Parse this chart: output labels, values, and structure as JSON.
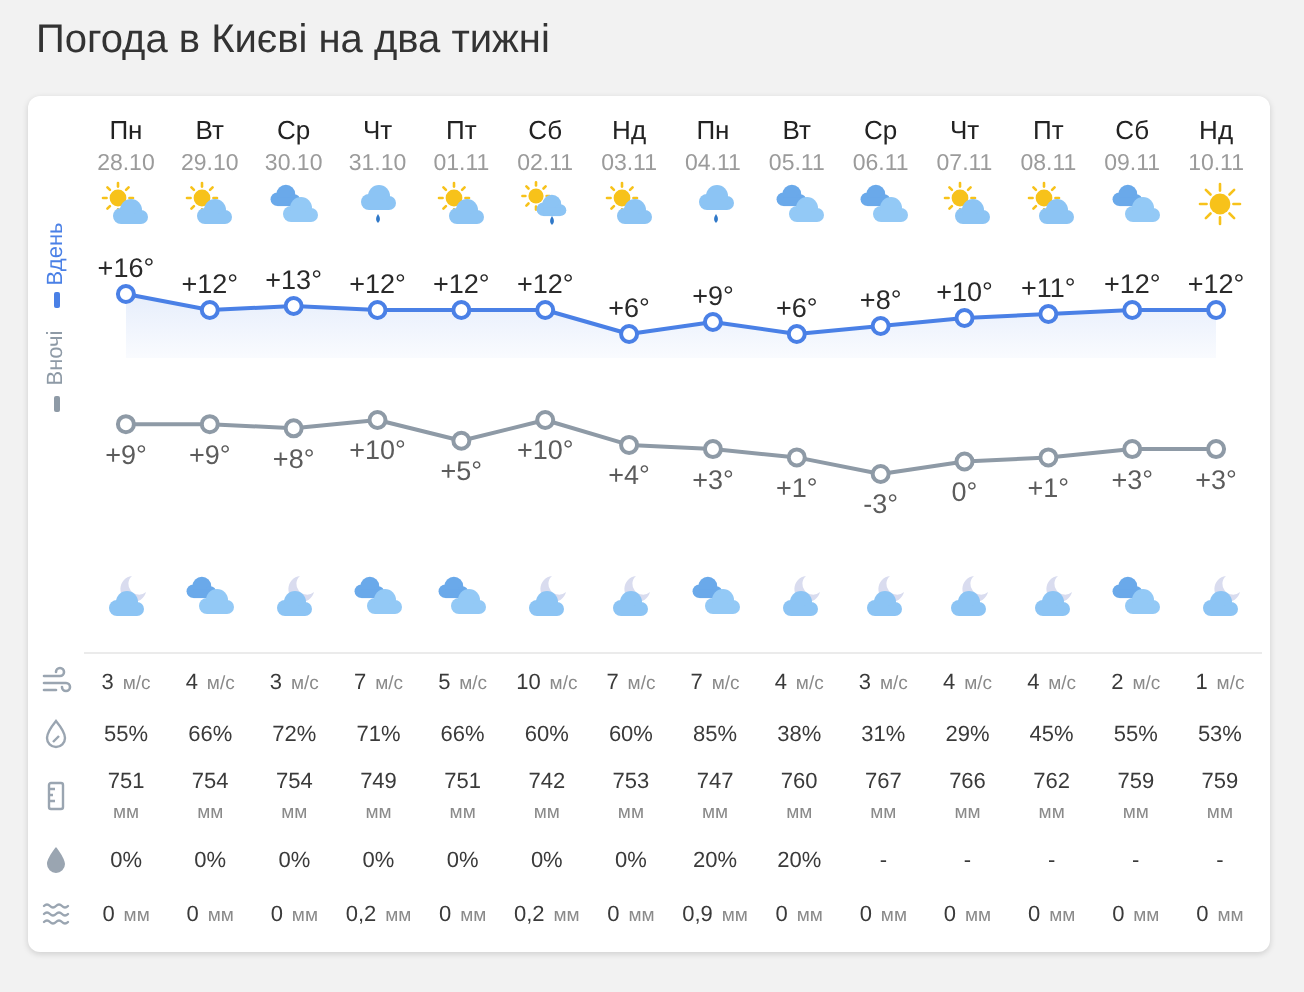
{
  "chart_data": [
    {
      "type": "area",
      "title": "Погода в Києві на два тижні",
      "categories": [
        "Пн 28.10",
        "Вт 29.10",
        "Ср 30.10",
        "Чт 31.10",
        "Пт 01.11",
        "Сб 02.11",
        "Нд 03.11",
        "Пн 04.11",
        "Вт 05.11",
        "Ср 06.11",
        "Чт 07.11",
        "Пт 08.11",
        "Сб 09.11",
        "Нд 10.11"
      ],
      "series": [
        {
          "name": "Вдень",
          "color": "#4a80e6",
          "values": [
            16,
            12,
            13,
            12,
            12,
            12,
            6,
            9,
            6,
            8,
            10,
            11,
            12,
            12
          ],
          "value_labels": [
            "+16°",
            "+12°",
            "+13°",
            "+12°",
            "+12°",
            "+12°",
            "+6°",
            "+9°",
            "+6°",
            "+8°",
            "+10°",
            "+11°",
            "+12°",
            "+12°"
          ]
        }
      ],
      "tick_labels": "x",
      "legend": "left",
      "marker": "circle"
    },
    {
      "type": "line",
      "categories": [
        null,
        null,
        null,
        null,
        null,
        null,
        null,
        null,
        null,
        null,
        null,
        null,
        null,
        null
      ],
      "series": [
        {
          "name": "Вночі",
          "color": "#8e9aa6",
          "values": [
            9,
            9,
            8,
            10,
            5,
            10,
            4,
            3,
            1,
            -3,
            0,
            1,
            3,
            3
          ],
          "value_labels": [
            "+9°",
            "+9°",
            "+8°",
            "+10°",
            "+5°",
            "+10°",
            "+4°",
            "+3°",
            "+1°",
            "-3°",
            "0°",
            "+1°",
            "+3°",
            "+3°"
          ]
        }
      ],
      "tick_labels": false,
      "legend": "left",
      "marker": "circle"
    },
    {
      "type": "other",
      "annotations": [
        "3 м/с",
        "4 м/с",
        "3 м/с",
        "7 м/с",
        "5 м/с",
        "10 м/с",
        "7 м/с",
        "7 м/с",
        "4 м/с",
        "3 м/с",
        "4 м/с",
        "4 м/с",
        "2 м/с",
        "1 м/с",
        "55%",
        "66%",
        "72%",
        "71%",
        "66%",
        "60%",
        "60%",
        "85%",
        "38%",
        "31%",
        "29%",
        "45%",
        "55%",
        "53%",
        "751\nмм",
        "754\nмм",
        "754\nмм",
        "749\nмм",
        "751\nмм",
        "742\nмм",
        "753\nмм",
        "747\nмм",
        "760\nмм",
        "767\nмм",
        "766\nмм",
        "762\nмм",
        "759\nмм",
        "759\nмм",
        "0%",
        "0%",
        "0%",
        "0%",
        "0%",
        "0%",
        "0%",
        "20%",
        "20%",
        "-",
        "-",
        "-",
        "-",
        "-",
        "0 мм",
        "0 мм",
        "0 мм",
        "0,2 мм",
        "0 мм",
        "0,2 мм",
        "0 мм",
        "0,9 мм",
        "0 мм",
        "0 мм",
        "0 мм",
        "0 мм",
        "0 мм",
        "0 мм"
      ]
    }
  ]
}
